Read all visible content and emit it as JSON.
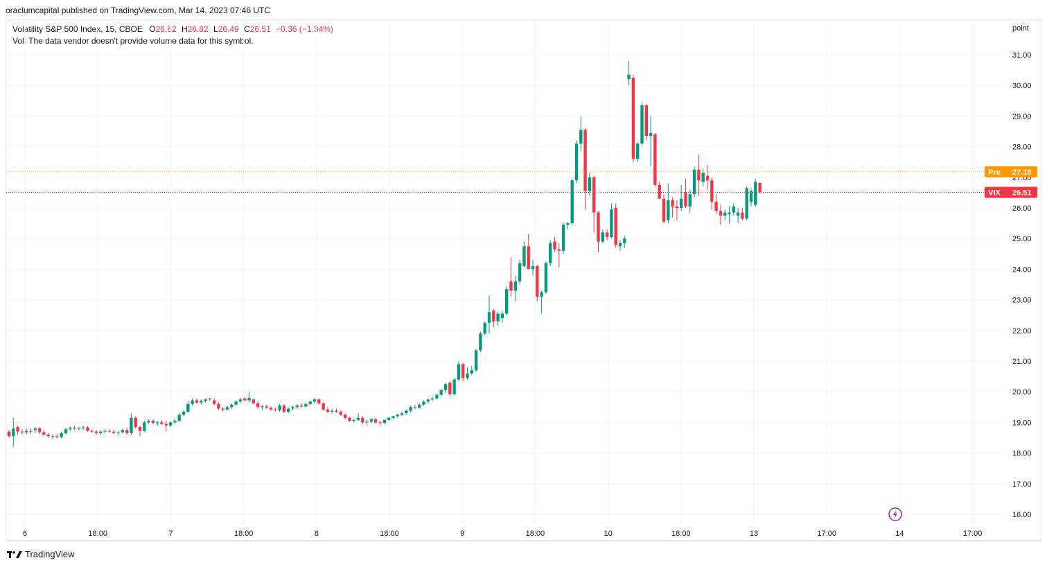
{
  "header": {
    "text": "oraclumcapital published on TradingView.com, Mar 14, 2023 07:46 UTC"
  },
  "legend": {
    "symbol": "Volatility S&P 500 Index, 15, CBOE",
    "o_label": "O",
    "o_value": "26.82",
    "h_label": "H",
    "h_value": "26.82",
    "l_label": "L",
    "l_value": "26.49",
    "c_label": "C",
    "c_value": "26.51",
    "change": "−0.36 (−1.34%)",
    "vol_text": "Vol: The data vendor doesn't provide volume data for this symbol."
  },
  "footer": {
    "brand": "TradingView"
  },
  "colors": {
    "up": "#089981",
    "down": "#f23645",
    "pre": "#ff9800",
    "grid": "#f0f3fa",
    "text": "#131722"
  },
  "chart_data": {
    "type": "candlestick",
    "unit_label": "point",
    "ylim": [
      15.8,
      31.5
    ],
    "y_ticks": [
      "16.00",
      "17.00",
      "18.00",
      "19.00",
      "20.00",
      "21.00",
      "22.00",
      "23.00",
      "24.00",
      "25.00",
      "26.00",
      "27.00",
      "28.00",
      "29.00",
      "30.00",
      "31.00"
    ],
    "x_ticks": [
      "6",
      "18:00",
      "7",
      "18:00",
      "8",
      "18:00",
      "9",
      "18:00",
      "10",
      "18:00",
      "13",
      "17:00",
      "14",
      "17:00"
    ],
    "price_labels": [
      {
        "name": "Pre",
        "value": 27.18,
        "text": "27.18",
        "color": "#ff9800"
      },
      {
        "name": "VIX",
        "value": 26.51,
        "text": "26.51",
        "color": "#f23645"
      }
    ],
    "candles": [
      [
        18.7,
        18.75,
        18.5,
        18.55
      ],
      [
        18.55,
        19.15,
        18.2,
        18.8
      ],
      [
        18.85,
        18.9,
        18.6,
        18.7
      ],
      [
        18.7,
        18.78,
        18.6,
        18.68
      ],
      [
        18.68,
        18.8,
        18.6,
        18.72
      ],
      [
        18.72,
        18.8,
        18.62,
        18.7
      ],
      [
        18.75,
        18.85,
        18.65,
        18.8
      ],
      [
        18.8,
        18.85,
        18.62,
        18.68
      ],
      [
        18.68,
        18.75,
        18.55,
        18.6
      ],
      [
        18.6,
        18.66,
        18.5,
        18.55
      ],
      [
        18.55,
        18.62,
        18.45,
        18.55
      ],
      [
        18.55,
        18.62,
        18.48,
        18.52
      ],
      [
        18.52,
        18.7,
        18.48,
        18.65
      ],
      [
        18.65,
        18.82,
        18.6,
        18.78
      ],
      [
        18.78,
        18.88,
        18.72,
        18.82
      ],
      [
        18.82,
        18.88,
        18.75,
        18.8
      ],
      [
        18.8,
        18.86,
        18.74,
        18.82
      ],
      [
        18.82,
        18.9,
        18.76,
        18.84
      ],
      [
        18.84,
        18.88,
        18.7,
        18.72
      ],
      [
        18.72,
        18.78,
        18.65,
        18.7
      ],
      [
        18.7,
        18.76,
        18.6,
        18.65
      ],
      [
        18.65,
        18.75,
        18.6,
        18.7
      ],
      [
        18.7,
        18.78,
        18.64,
        18.72
      ],
      [
        18.72,
        18.78,
        18.66,
        18.7
      ],
      [
        18.7,
        18.76,
        18.62,
        18.66
      ],
      [
        18.66,
        18.72,
        18.6,
        18.68
      ],
      [
        18.68,
        18.8,
        18.64,
        18.75
      ],
      [
        18.75,
        18.82,
        18.6,
        18.65
      ],
      [
        18.65,
        19.3,
        18.6,
        19.15
      ],
      [
        19.15,
        19.2,
        18.8,
        18.85
      ],
      [
        18.85,
        18.9,
        18.55,
        18.72
      ],
      [
        18.72,
        19.05,
        18.68,
        19.0
      ],
      [
        19.0,
        19.1,
        18.95,
        19.05
      ],
      [
        19.05,
        19.1,
        18.95,
        18.98
      ],
      [
        18.98,
        19.05,
        18.9,
        19.0
      ],
      [
        19.0,
        19.08,
        18.92,
        18.95
      ],
      [
        18.95,
        19.05,
        18.7,
        18.9
      ],
      [
        18.9,
        19.05,
        18.85,
        19.0
      ],
      [
        19.0,
        19.1,
        18.95,
        19.05
      ],
      [
        19.05,
        19.3,
        19.0,
        19.25
      ],
      [
        19.25,
        19.4,
        19.2,
        19.35
      ],
      [
        19.35,
        19.7,
        19.3,
        19.6
      ],
      [
        19.6,
        19.78,
        19.55,
        19.72
      ],
      [
        19.72,
        19.78,
        19.6,
        19.65
      ],
      [
        19.65,
        19.75,
        19.58,
        19.7
      ],
      [
        19.7,
        19.78,
        19.65,
        19.75
      ],
      [
        19.75,
        19.8,
        19.7,
        19.78
      ],
      [
        19.72,
        19.78,
        19.55,
        19.6
      ],
      [
        19.6,
        19.65,
        19.4,
        19.45
      ],
      [
        19.45,
        19.5,
        19.35,
        19.42
      ],
      [
        19.42,
        19.55,
        19.38,
        19.5
      ],
      [
        19.5,
        19.62,
        19.45,
        19.58
      ],
      [
        19.58,
        19.72,
        19.55,
        19.68
      ],
      [
        19.68,
        19.8,
        19.62,
        19.75
      ],
      [
        19.78,
        19.82,
        19.68,
        19.72
      ],
      [
        19.72,
        20.0,
        19.65,
        19.8
      ],
      [
        19.75,
        19.78,
        19.6,
        19.62
      ],
      [
        19.62,
        19.68,
        19.45,
        19.5
      ],
      [
        19.5,
        19.58,
        19.4,
        19.52
      ],
      [
        19.52,
        19.58,
        19.45,
        19.48
      ],
      [
        19.48,
        19.52,
        19.38,
        19.42
      ],
      [
        19.42,
        19.48,
        19.35,
        19.4
      ],
      [
        19.4,
        19.6,
        19.35,
        19.55
      ],
      [
        19.55,
        19.6,
        19.3,
        19.35
      ],
      [
        19.35,
        19.48,
        19.3,
        19.45
      ],
      [
        19.45,
        19.55,
        19.4,
        19.5
      ],
      [
        19.5,
        19.6,
        19.45,
        19.55
      ],
      [
        19.55,
        19.62,
        19.48,
        19.52
      ],
      [
        19.52,
        19.65,
        19.48,
        19.6
      ],
      [
        19.6,
        19.72,
        19.55,
        19.68
      ],
      [
        19.68,
        19.8,
        19.62,
        19.75
      ],
      [
        19.75,
        19.78,
        19.58,
        19.62
      ],
      [
        19.62,
        19.65,
        19.38,
        19.42
      ],
      [
        19.42,
        19.5,
        19.3,
        19.35
      ],
      [
        19.35,
        19.45,
        19.3,
        19.38
      ],
      [
        19.38,
        19.45,
        19.32,
        19.35
      ],
      [
        19.35,
        19.4,
        19.22,
        19.25
      ],
      [
        19.25,
        19.3,
        19.1,
        19.15
      ],
      [
        19.15,
        19.18,
        19.02,
        19.05
      ],
      [
        19.05,
        19.12,
        19.0,
        19.08
      ],
      [
        19.08,
        19.3,
        19.05,
        19.15
      ],
      [
        19.15,
        19.2,
        18.95,
        19.0
      ],
      [
        19.0,
        19.08,
        18.92,
        19.02
      ],
      [
        19.02,
        19.15,
        18.98,
        19.1
      ],
      [
        19.1,
        19.15,
        18.95,
        19.0
      ],
      [
        19.0,
        19.05,
        18.92,
        18.98
      ],
      [
        18.98,
        19.1,
        18.95,
        19.08
      ],
      [
        19.08,
        19.18,
        19.05,
        19.15
      ],
      [
        19.15,
        19.22,
        19.1,
        19.2
      ],
      [
        19.2,
        19.28,
        19.15,
        19.25
      ],
      [
        19.25,
        19.35,
        19.2,
        19.3
      ],
      [
        19.3,
        19.42,
        19.25,
        19.38
      ],
      [
        19.38,
        19.55,
        19.32,
        19.5
      ],
      [
        19.5,
        19.58,
        19.42,
        19.48
      ],
      [
        19.48,
        19.62,
        19.45,
        19.58
      ],
      [
        19.58,
        19.72,
        19.55,
        19.68
      ],
      [
        19.68,
        19.78,
        19.62,
        19.75
      ],
      [
        19.75,
        19.82,
        19.7,
        19.78
      ],
      [
        19.78,
        19.95,
        19.75,
        19.9
      ],
      [
        19.9,
        20.1,
        19.85,
        20.05
      ],
      [
        20.05,
        20.3,
        19.95,
        20.25
      ],
      [
        20.3,
        20.35,
        19.85,
        19.92
      ],
      [
        19.92,
        20.45,
        19.88,
        20.4
      ],
      [
        20.4,
        21.0,
        20.35,
        20.9
      ],
      [
        20.9,
        20.95,
        20.35,
        20.45
      ],
      [
        20.45,
        20.8,
        20.4,
        20.6
      ],
      [
        20.6,
        20.85,
        20.55,
        20.7
      ],
      [
        20.7,
        21.4,
        20.65,
        21.35
      ],
      [
        21.35,
        21.95,
        21.3,
        21.9
      ],
      [
        21.9,
        22.3,
        21.85,
        22.25
      ],
      [
        22.25,
        23.15,
        21.9,
        22.6
      ],
      [
        22.65,
        22.7,
        22.1,
        22.3
      ],
      [
        22.3,
        22.6,
        22.15,
        22.55
      ],
      [
        22.4,
        22.65,
        22.25,
        22.55
      ],
      [
        22.55,
        23.45,
        22.5,
        23.35
      ],
      [
        23.6,
        24.4,
        23.1,
        23.3
      ],
      [
        23.3,
        23.8,
        22.95,
        23.6
      ],
      [
        23.6,
        24.3,
        23.5,
        24.2
      ],
      [
        24.1,
        24.9,
        24.05,
        24.75
      ],
      [
        24.75,
        25.15,
        24.0,
        24.0
      ],
      [
        24.0,
        24.3,
        23.8,
        24.1
      ],
      [
        24.1,
        24.15,
        22.95,
        23.1
      ],
      [
        23.1,
        23.3,
        22.55,
        23.25
      ],
      [
        23.25,
        24.25,
        23.2,
        24.2
      ],
      [
        24.2,
        24.95,
        24.1,
        24.85
      ],
      [
        24.9,
        25.05,
        24.55,
        24.65
      ],
      [
        24.65,
        24.85,
        24.05,
        24.6
      ],
      [
        24.6,
        25.5,
        24.5,
        25.45
      ],
      [
        25.45,
        25.55,
        25.3,
        25.5
      ],
      [
        25.5,
        26.95,
        25.45,
        26.9
      ],
      [
        26.9,
        28.2,
        26.8,
        28.1
      ],
      [
        28.1,
        29.0,
        27.85,
        28.55
      ],
      [
        28.55,
        28.6,
        25.95,
        26.55
      ],
      [
        26.55,
        27.15,
        26.4,
        27.0
      ],
      [
        27.0,
        27.05,
        25.2,
        25.85
      ],
      [
        25.85,
        25.9,
        24.55,
        24.9
      ],
      [
        24.9,
        25.3,
        24.85,
        25.2
      ],
      [
        25.2,
        25.3,
        24.95,
        25.05
      ],
      [
        25.05,
        26.15,
        25.0,
        25.95
      ],
      [
        26.0,
        26.15,
        24.7,
        24.8
      ],
      [
        24.75,
        24.95,
        24.6,
        24.85
      ],
      [
        24.85,
        25.1,
        24.7,
        25.0
      ],
      [
        30.2,
        30.8,
        30.0,
        30.35
      ],
      [
        30.25,
        30.35,
        27.5,
        27.6
      ],
      [
        27.6,
        28.15,
        27.5,
        28.1
      ],
      [
        28.1,
        29.45,
        28.05,
        29.35
      ],
      [
        29.35,
        29.4,
        28.2,
        28.35
      ],
      [
        28.35,
        29.0,
        27.35,
        28.45
      ],
      [
        28.4,
        28.45,
        26.7,
        26.75
      ],
      [
        26.75,
        26.85,
        26.3,
        26.3
      ],
      [
        26.3,
        26.45,
        25.5,
        25.55
      ],
      [
        25.6,
        26.8,
        25.5,
        26.25
      ],
      [
        26.25,
        26.35,
        25.7,
        26.05
      ],
      [
        26.05,
        26.25,
        25.6,
        26.0
      ],
      [
        26.0,
        26.75,
        25.9,
        26.3
      ],
      [
        26.5,
        26.95,
        26.0,
        26.05
      ],
      [
        26.05,
        26.6,
        25.85,
        26.45
      ],
      [
        26.45,
        27.35,
        26.35,
        27.25
      ],
      [
        27.25,
        27.75,
        26.4,
        26.9
      ],
      [
        26.85,
        27.3,
        26.7,
        27.15
      ],
      [
        27.05,
        27.4,
        26.6,
        26.9
      ],
      [
        26.9,
        27.0,
        25.95,
        26.2
      ],
      [
        26.2,
        26.45,
        25.8,
        25.9
      ],
      [
        25.9,
        26.1,
        25.45,
        25.75
      ],
      [
        25.75,
        25.95,
        25.6,
        25.85
      ],
      [
        25.8,
        26.05,
        25.5,
        25.85
      ],
      [
        25.85,
        26.15,
        25.75,
        26.05
      ],
      [
        25.75,
        26.0,
        25.5,
        25.85
      ],
      [
        25.85,
        26.0,
        25.6,
        25.65
      ],
      [
        25.65,
        26.7,
        25.6,
        26.65
      ],
      [
        26.2,
        26.65,
        26.05,
        26.55
      ],
      [
        26.1,
        26.95,
        26.05,
        26.85
      ],
      [
        26.82,
        26.82,
        26.49,
        26.51
      ]
    ]
  }
}
